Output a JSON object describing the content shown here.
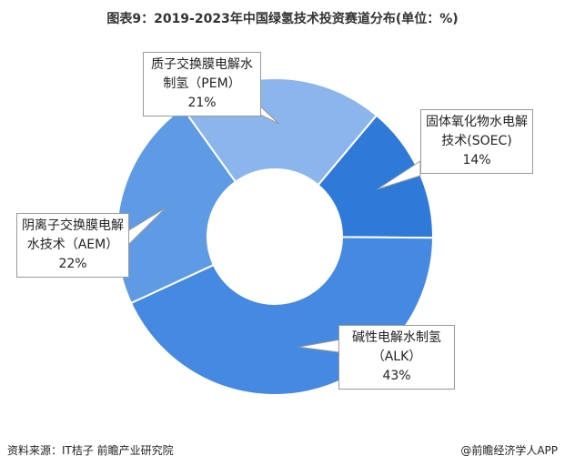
{
  "chart_data": {
    "type": "donut",
    "title": "图表9：2019-2023年中国绿氢技术投资赛道分布(单位：%)",
    "categories": [
      "固体氧化物水电解技术(SOEC)",
      "碱性电解水制氢（ALK）",
      "阴离子交换膜电解水技术（AEM）",
      "质子交换膜电解水制氢（PEM）"
    ],
    "values": [
      14,
      43,
      22,
      21
    ],
    "value_labels": [
      "14%",
      "43%",
      "22%",
      "21%"
    ],
    "colors": [
      "#2f7ad9",
      "#4589e2",
      "#5f9ae5",
      "#8bb5ec"
    ],
    "source": "资料来源：IT桔子 前瞻产业研究院",
    "credit": "@前瞻经济学人APP"
  }
}
